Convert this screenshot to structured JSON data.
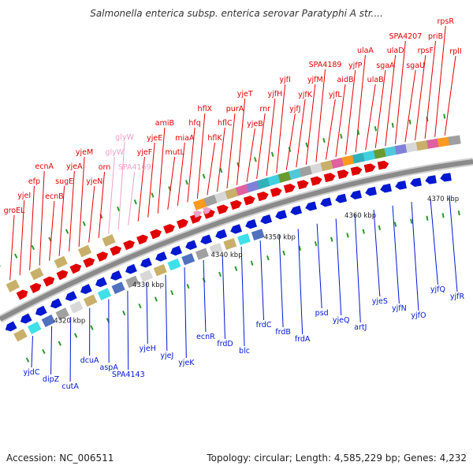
{
  "title": "Salmonella enterica subsp. enterica serovar Paratyphi A str....",
  "footer": {
    "accession": "Accession: NC_006511",
    "topology": "Topology: circular; Length: 4,585,229 bp; Genes: 4,232"
  },
  "colors": {
    "forward": "#e00000",
    "reverse": "#0018d0",
    "trna": "#f0a0c8",
    "backbone": "#8a8a8a"
  },
  "kbp_ticks": [
    "4320 kbp",
    "4330 kbp",
    "4340 kbp",
    "4350 kbp",
    "4360 kbp",
    "4370 kbp"
  ],
  "genes_top": [
    "groEL",
    "yjeI",
    "efp",
    "ecnA",
    "ecnB",
    "sugE",
    "yjeA",
    "yjeM",
    "yjeN",
    "orn",
    "glyW",
    "glyW",
    "SPA4169",
    "yjeF",
    "yjeE",
    "amiB",
    "mutL",
    "miaA",
    "hfq",
    "hflX",
    "hflK",
    "hflC",
    "purA",
    "yjeT",
    "yjeB",
    "rnr",
    "yjfH",
    "yjfI",
    "yjfJ",
    "yjfK",
    "yjfM",
    "SPA4189",
    "yjfL",
    "aidB",
    "yjfP",
    "ulaA",
    "ulaB",
    "sgaA",
    "ulaD",
    "SPA4207",
    "sgaU",
    "rpsF",
    "priB",
    "rpsR",
    "rplI"
  ],
  "genes_bottom": [
    "yjdC",
    "dipZ",
    "cutA",
    "dcuA",
    "aspA",
    "SPA4143",
    "yjeH",
    "yjeJ",
    "yjeK",
    "ecnR",
    "frdD",
    "blc",
    "frdC",
    "frdB",
    "frdA",
    "psd",
    "yjeQ",
    "artJ",
    "yjeS",
    "yjfN",
    "yjfO",
    "yjfQ",
    "yjfR"
  ]
}
